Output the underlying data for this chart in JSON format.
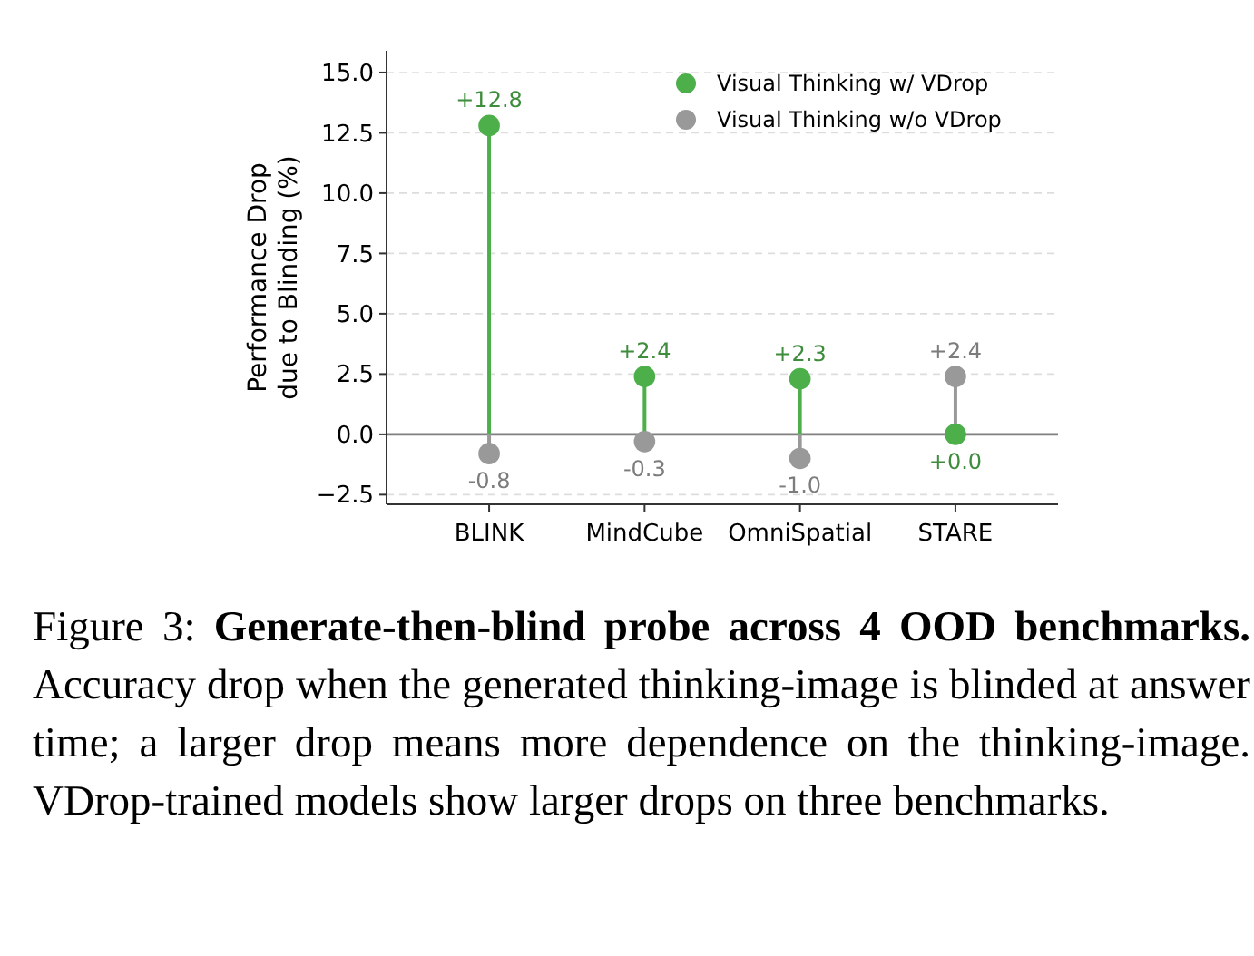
{
  "chart_data": {
    "type": "lollipop",
    "ylabel": "Performance Drop\ndue to Blinding (%)",
    "categories": [
      "BLINK",
      "MindCube",
      "OmniSpatial",
      "STARE"
    ],
    "series": [
      {
        "name": "Visual Thinking w/ VDrop",
        "color": "#4daf4a",
        "values": [
          12.8,
          2.4,
          2.3,
          0.0
        ],
        "value_labels": [
          "+12.8",
          "+2.4",
          "+2.3",
          "+0.0"
        ]
      },
      {
        "name": "Visual Thinking w/o VDrop",
        "color": "#999999",
        "values": [
          -0.8,
          -0.3,
          -1.0,
          2.4
        ],
        "value_labels": [
          "-0.8",
          "-0.3",
          "-1.0",
          "+2.4"
        ]
      }
    ],
    "ylim": [
      -2.9,
      15.9
    ],
    "yticks": [
      {
        "value": -2.5,
        "label": "−2.5"
      },
      {
        "value": 0,
        "label": "0.0"
      },
      {
        "value": 2.5,
        "label": "2.5"
      },
      {
        "value": 5,
        "label": "5.0"
      },
      {
        "value": 7.5,
        "label": "7.5"
      },
      {
        "value": 10,
        "label": "10.0"
      },
      {
        "value": 12.5,
        "label": "12.5"
      },
      {
        "value": 15,
        "label": "15.0"
      }
    ],
    "grid": "y",
    "legend": "top right",
    "marker": "circle",
    "ref_lines": [
      {
        "axis": "y",
        "value": 0,
        "color": "#808080"
      }
    ],
    "annotations": [
      "Figure 3: ",
      "Generate-then-blind probe across 4 OOD benchmarks.",
      "  Accuracy drop when the generated thinking-image is blinded at answer time; a larger drop means more dependence on the thinking-image. VDrop-trained models show larger drops on three benchmarks."
    ]
  }
}
